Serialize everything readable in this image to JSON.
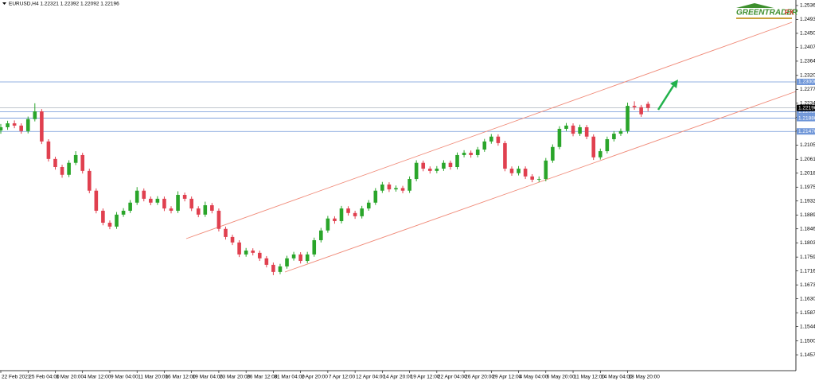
{
  "chart_data": {
    "type": "candlestick",
    "title": "EURUSD,H4  1.22321 1.22392 1.22092 1.22196",
    "logo": {
      "name": "GREENTRADER",
      "suffix": "FX"
    },
    "up_color": "#2aa52a",
    "down_color": "#e0404f",
    "categories": [
      "22 Feb 2021",
      null,
      null,
      null,
      "25 Feb 04:00",
      null,
      null,
      null,
      "1 Mar 20:00",
      null,
      null,
      null,
      "4 Mar 12:00",
      null,
      null,
      null,
      "9 Mar 04:00",
      null,
      null,
      null,
      "11 Mar 20:00",
      null,
      null,
      null,
      "16 Mar 12:00",
      null,
      null,
      null,
      "19 Mar 04:00",
      null,
      null,
      null,
      "23 Mar 20:00",
      null,
      null,
      null,
      "26 Mar 12:00",
      null,
      null,
      null,
      "31 Mar 04:00",
      null,
      null,
      null,
      "2 Apr 20:00",
      null,
      null,
      null,
      "7 Apr 12:00",
      null,
      null,
      null,
      "12 Apr 04:00",
      null,
      null,
      null,
      "14 Apr 20:00",
      null,
      null,
      null,
      "19 Apr 12:00",
      null,
      null,
      null,
      "22 Apr 04:00",
      null,
      null,
      null,
      "26 Apr 20:00",
      null,
      null,
      null,
      "29 Apr 12:00",
      null,
      null,
      null,
      "4 May 04:00",
      null,
      null,
      null,
      "6 May 20:00",
      null,
      null,
      null,
      "11 May 12:00",
      null,
      null,
      null,
      "14 May 04:00",
      null,
      null,
      null,
      "18 May 20:00",
      null,
      null,
      null
    ],
    "open": [
      1.215,
      1.216,
      1.2172,
      1.2165,
      1.2148,
      1.2185,
      1.2209,
      1.2116,
      1.2062,
      1.2037,
      1.2013,
      1.205,
      1.2074,
      1.2025,
      1.1964,
      1.1902,
      1.1865,
      1.1853,
      1.189,
      1.1902,
      1.1927,
      1.1964,
      1.1939,
      1.1927,
      1.1939,
      1.1909,
      1.1902,
      1.1951,
      1.1939,
      1.1909,
      1.189,
      1.1919,
      1.1902,
      1.1846,
      1.1821,
      1.1804,
      1.1767,
      1.1779,
      1.1772,
      1.1755,
      1.1735,
      1.1713,
      1.173,
      1.1755,
      1.1767,
      1.1747,
      1.1767,
      1.1811,
      1.1841,
      1.1878,
      1.187,
      1.1909,
      1.1895,
      1.1885,
      1.1909,
      1.1927,
      1.1964,
      1.1983,
      1.1968,
      1.1972,
      1.1964,
      1.2,
      1.205,
      1.2032,
      1.2025,
      1.2032,
      1.205,
      1.2037,
      1.2074,
      1.2081,
      1.2074,
      1.2091,
      1.2116,
      1.2131,
      1.2111,
      1.2032,
      1.2018,
      1.2032,
      1.2008,
      1.1998,
      1.2,
      1.2057,
      1.2099,
      1.2155,
      1.2165,
      1.214,
      1.216,
      1.2131,
      1.2067,
      1.2086,
      1.2123,
      1.214,
      1.2148,
      1.2226,
      1.2222,
      1.22321
    ],
    "high": [
      1.217,
      1.218,
      1.2181,
      1.2172,
      1.2193,
      1.2234,
      1.2216,
      1.2123,
      1.2069,
      1.2044,
      1.2058,
      1.2086,
      1.2081,
      1.2032,
      1.1971,
      1.1909,
      1.1872,
      1.1898,
      1.191,
      1.1935,
      1.1975,
      1.1971,
      1.1946,
      1.1947,
      1.1946,
      1.1916,
      1.1962,
      1.1958,
      1.1946,
      1.1916,
      1.193,
      1.1926,
      1.1909,
      1.1853,
      1.1828,
      1.1811,
      1.1787,
      1.1786,
      1.1779,
      1.1762,
      1.1742,
      1.1738,
      1.1763,
      1.1775,
      1.1774,
      1.1775,
      1.1819,
      1.1849,
      1.1886,
      1.1885,
      1.1917,
      1.1916,
      1.1902,
      1.1917,
      1.1935,
      1.1972,
      1.1991,
      1.199,
      1.198,
      1.1979,
      1.2008,
      1.2058,
      1.2057,
      1.2039,
      1.204,
      1.2058,
      1.2057,
      1.2082,
      1.2089,
      1.2088,
      1.2099,
      1.2124,
      1.2139,
      1.2138,
      1.2118,
      1.2039,
      1.204,
      1.2039,
      1.2015,
      1.2008,
      1.2065,
      1.2107,
      1.2163,
      1.2173,
      1.2172,
      1.2168,
      1.2167,
      1.2138,
      1.2094,
      1.2131,
      1.2148,
      1.2156,
      1.2236,
      1.224,
      1.2229,
      1.22392
    ],
    "low": [
      1.214,
      1.2152,
      1.2157,
      1.214,
      1.2141,
      1.2178,
      1.2108,
      1.2054,
      1.2029,
      1.2004,
      1.2006,
      1.2043,
      1.2017,
      1.1956,
      1.1894,
      1.1857,
      1.1845,
      1.1846,
      1.1883,
      1.1895,
      1.192,
      1.1931,
      1.1919,
      1.192,
      1.1901,
      1.1894,
      1.1895,
      1.1931,
      1.1901,
      1.1882,
      1.1883,
      1.1894,
      1.1838,
      1.1813,
      1.1796,
      1.1759,
      1.176,
      1.1764,
      1.1747,
      1.1727,
      1.1703,
      1.1706,
      1.1723,
      1.1748,
      1.1739,
      1.174,
      1.176,
      1.1804,
      1.1834,
      1.1862,
      1.1863,
      1.1887,
      1.1877,
      1.1878,
      1.1902,
      1.192,
      1.1957,
      1.196,
      1.1961,
      1.1956,
      1.1957,
      1.1993,
      1.2024,
      1.2017,
      1.2018,
      1.2025,
      1.2029,
      1.203,
      1.2067,
      1.2066,
      1.2067,
      1.2084,
      1.2109,
      1.2103,
      1.2024,
      1.201,
      1.2011,
      1.2,
      1.199,
      1.1991,
      1.1993,
      1.205,
      1.2092,
      1.2148,
      1.2132,
      1.2133,
      1.2123,
      1.2059,
      1.206,
      1.2079,
      1.2116,
      1.2133,
      1.2141,
      1.2214,
      1.2192,
      1.22092
    ],
    "close": [
      1.216,
      1.2172,
      1.2165,
      1.2148,
      1.2185,
      1.2209,
      1.2116,
      1.2062,
      1.2037,
      1.2013,
      1.205,
      1.2074,
      1.2025,
      1.1964,
      1.1902,
      1.1865,
      1.1853,
      1.189,
      1.1902,
      1.1927,
      1.1964,
      1.1939,
      1.1927,
      1.1939,
      1.1909,
      1.1902,
      1.1951,
      1.1939,
      1.1909,
      1.189,
      1.1919,
      1.1902,
      1.1846,
      1.1821,
      1.1804,
      1.1767,
      1.1779,
      1.1772,
      1.1755,
      1.1735,
      1.1713,
      1.173,
      1.1755,
      1.1767,
      1.1747,
      1.1767,
      1.1811,
      1.1841,
      1.1878,
      1.187,
      1.1909,
      1.1895,
      1.1885,
      1.1909,
      1.1927,
      1.1964,
      1.1983,
      1.1968,
      1.1972,
      1.1964,
      1.2,
      1.205,
      1.2032,
      1.2025,
      1.2032,
      1.205,
      1.2037,
      1.2074,
      1.2081,
      1.2074,
      1.2091,
      1.2116,
      1.2131,
      1.2111,
      1.2032,
      1.2018,
      1.2032,
      1.2008,
      1.1998,
      1.2,
      1.2057,
      1.2099,
      1.2155,
      1.2165,
      1.214,
      1.216,
      1.2131,
      1.2067,
      1.2086,
      1.2123,
      1.214,
      1.2148,
      1.2226,
      1.2222,
      1.22,
      1.22196
    ],
    "ylim": [
      1.1408,
      1.2553
    ],
    "yticks": [
      {
        "value": 1.2536,
        "label": "1.25360"
      },
      {
        "value": 1.2493,
        "label": "1.24930"
      },
      {
        "value": 1.245,
        "label": "1.24500"
      },
      {
        "value": 1.2407,
        "label": "1.24070"
      },
      {
        "value": 1.2364,
        "label": "1.23640"
      },
      {
        "value": 1.232,
        "label": "1.23200"
      },
      {
        "value": 1.2277,
        "label": "1.22770"
      },
      {
        "value": 1.2234,
        "label": "1.22340"
      },
      {
        "value": 1.2191,
        "label": "1.21910"
      },
      {
        "value": 1.2148,
        "label": "1.21480"
      },
      {
        "value": 1.2105,
        "label": "1.21050"
      },
      {
        "value": 1.2061,
        "label": "1.20610"
      },
      {
        "value": 1.2018,
        "label": "1.20180"
      },
      {
        "value": 1.1975,
        "label": "1.19750"
      },
      {
        "value": 1.1932,
        "label": "1.19320"
      },
      {
        "value": 1.1889,
        "label": "1.18890"
      },
      {
        "value": 1.1846,
        "label": "1.18460"
      },
      {
        "value": 1.1803,
        "label": "1.18030"
      },
      {
        "value": 1.1759,
        "label": "1.17590"
      },
      {
        "value": 1.1716,
        "label": "1.17160"
      },
      {
        "value": 1.1673,
        "label": "1.16730"
      },
      {
        "value": 1.163,
        "label": "1.16300"
      },
      {
        "value": 1.1587,
        "label": "1.15870"
      },
      {
        "value": 1.1544,
        "label": "1.15440"
      },
      {
        "value": 1.15,
        "label": "1.15000"
      },
      {
        "value": 1.1457,
        "label": "1.14570"
      }
    ],
    "level_color": "#6f96d8",
    "levels": [
      {
        "value": 1.23,
        "label": "1.23000"
      },
      {
        "value": 1.2208,
        "label": "1.22080"
      },
      {
        "value": 1.2188,
        "label": "1.21880"
      },
      {
        "value": 1.2147,
        "label": "1.21470"
      }
    ],
    "current_price": {
      "value": 1.22196,
      "label": "1.22196"
    }
  }
}
